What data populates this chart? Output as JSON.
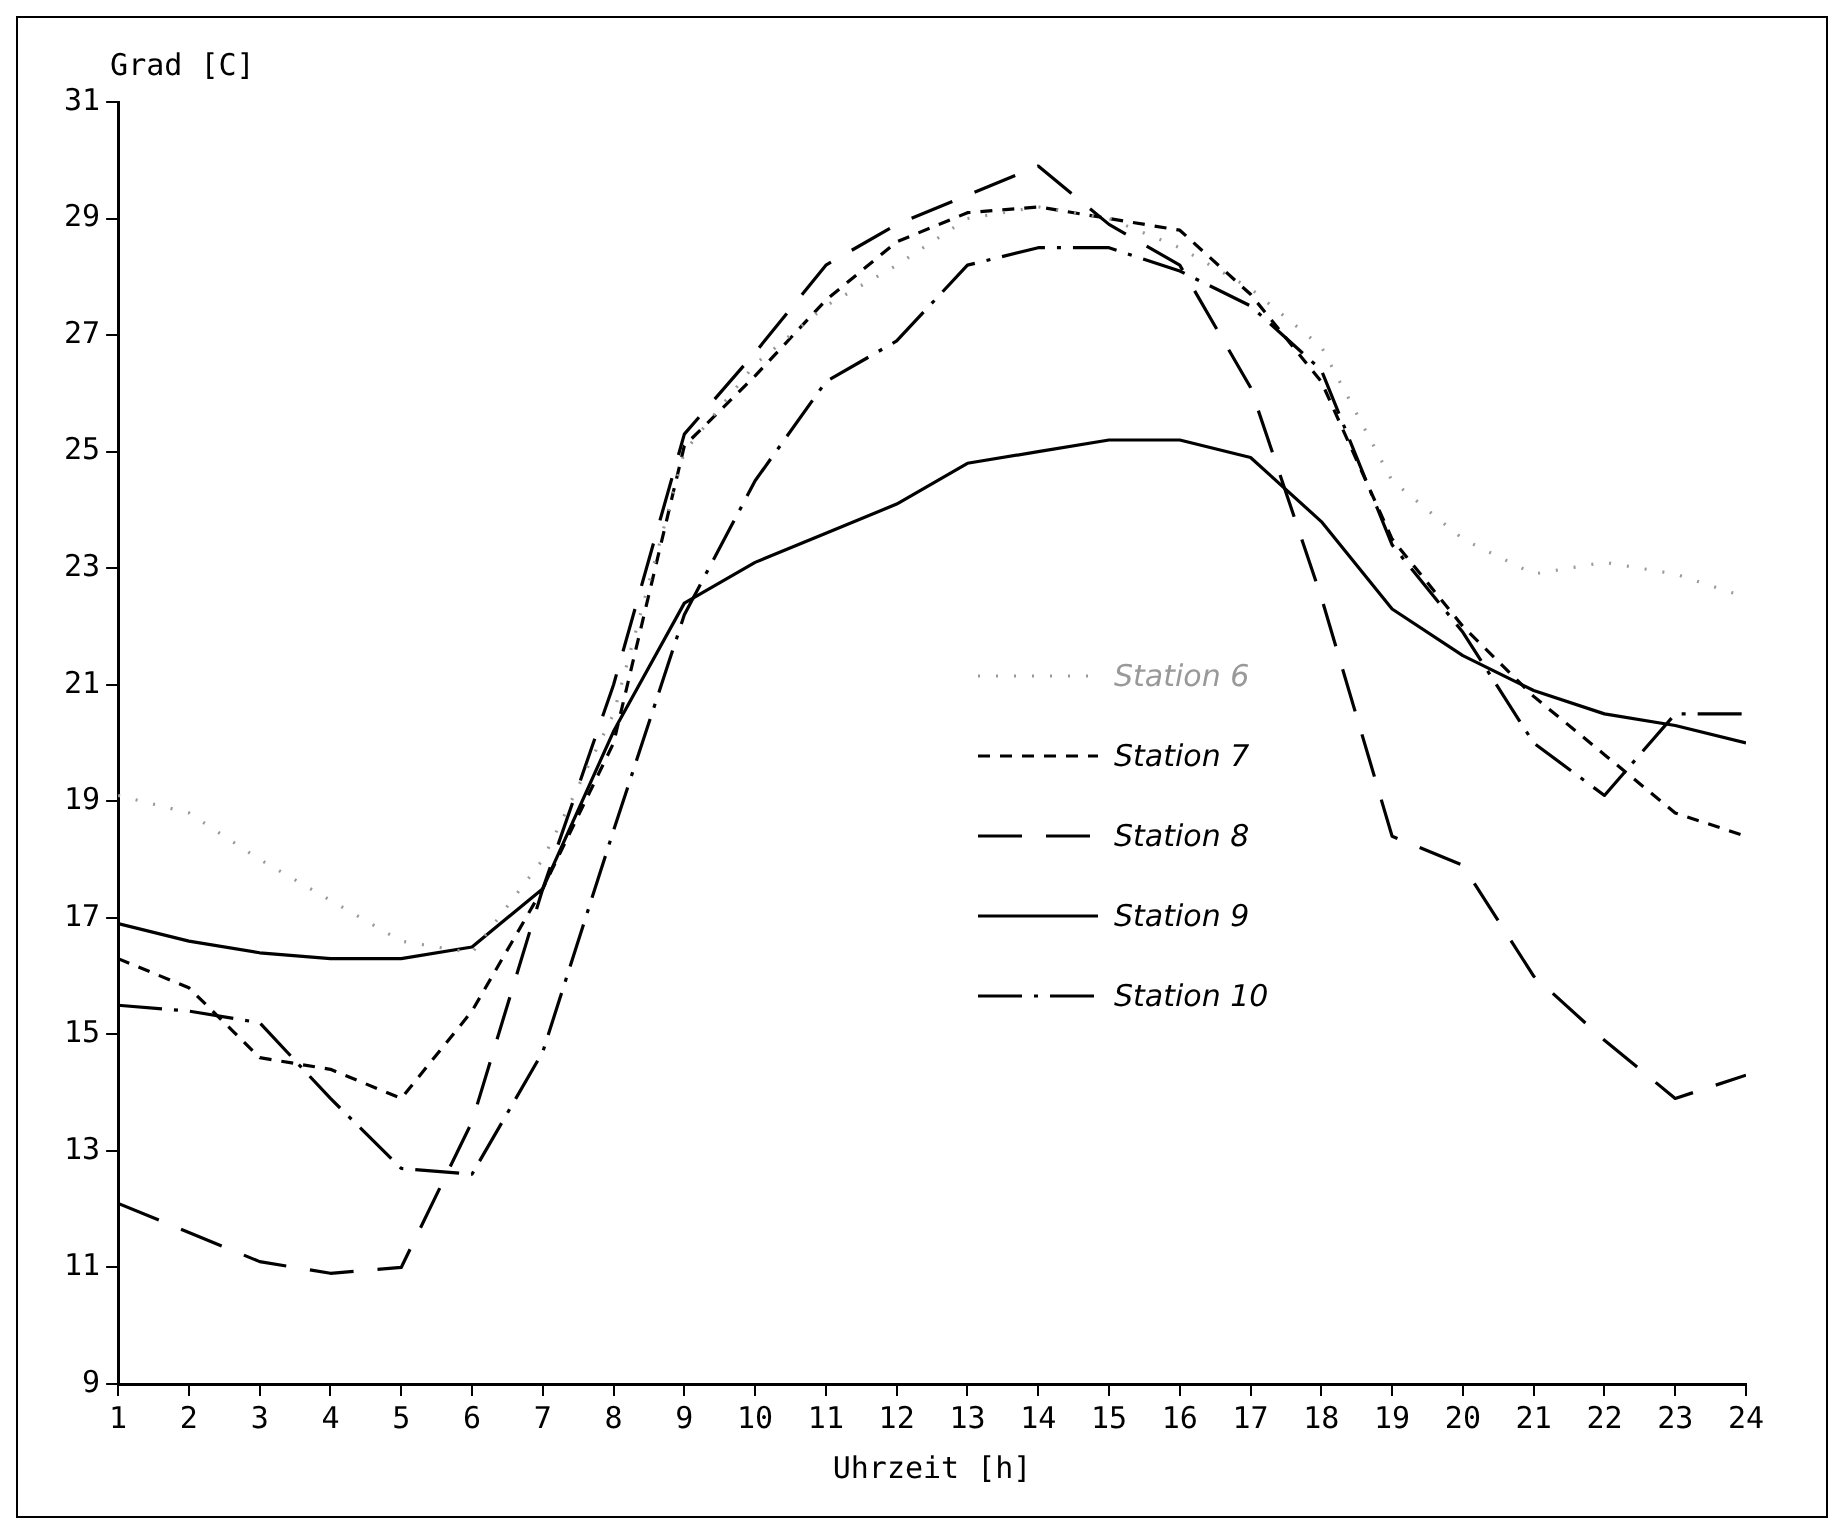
{
  "chart_data": {
    "type": "line",
    "xlabel": "Uhrzeit [h]",
    "ylabel": "Grad [C]",
    "x": [
      1,
      2,
      3,
      4,
      5,
      6,
      7,
      8,
      9,
      10,
      11,
      12,
      13,
      14,
      15,
      16,
      17,
      18,
      19,
      20,
      21,
      22,
      23,
      24
    ],
    "xlim": [
      1,
      24
    ],
    "xticks": [
      1,
      2,
      3,
      4,
      5,
      6,
      7,
      8,
      9,
      10,
      11,
      12,
      13,
      14,
      15,
      16,
      17,
      18,
      19,
      20,
      21,
      22,
      23,
      24
    ],
    "ylim": [
      9,
      31
    ],
    "yticks": [
      9,
      11,
      13,
      15,
      17,
      19,
      21,
      23,
      25,
      27,
      29,
      31
    ],
    "grid": false,
    "legend": "center",
    "marker": "none",
    "series": [
      {
        "name": "Station 6",
        "color": "#999999",
        "line_style": "dotted",
        "values": [
          19.1,
          18.8,
          18.0,
          17.3,
          16.6,
          16.4,
          18.0,
          20.5,
          25.0,
          26.5,
          27.5,
          28.2,
          29.0,
          29.2,
          29.0,
          28.5,
          27.8,
          26.8,
          24.5,
          23.5,
          22.9,
          23.1,
          22.9,
          22.5
        ]
      },
      {
        "name": "Station 7",
        "color": "#000000",
        "line_style": "dashed",
        "values": [
          16.3,
          15.8,
          14.6,
          14.4,
          13.9,
          15.4,
          17.5,
          20.0,
          25.1,
          26.3,
          27.6,
          28.6,
          29.1,
          29.2,
          29.0,
          28.8,
          27.7,
          26.2,
          23.5,
          22.0,
          20.8,
          19.8,
          18.8,
          18.4
        ]
      },
      {
        "name": "Station 8",
        "color": "#000000",
        "line_style": "longdash",
        "values": [
          12.1,
          11.6,
          11.1,
          10.9,
          11.0,
          13.5,
          17.5,
          21.0,
          25.3,
          26.7,
          28.2,
          28.9,
          29.4,
          29.9,
          28.9,
          28.2,
          26.1,
          22.5,
          18.4,
          17.9,
          16.0,
          14.9,
          13.9,
          14.3
        ]
      },
      {
        "name": "Station 9",
        "color": "#000000",
        "line_style": "solid",
        "values": [
          16.9,
          16.6,
          16.4,
          16.3,
          16.3,
          16.5,
          17.5,
          20.2,
          22.4,
          23.1,
          23.6,
          24.1,
          24.8,
          25.0,
          25.2,
          25.2,
          24.9,
          23.8,
          22.3,
          21.5,
          20.9,
          20.5,
          20.3,
          20.0
        ]
      },
      {
        "name": "Station 10",
        "color": "#000000",
        "line_style": "dashdot",
        "values": [
          15.5,
          15.4,
          15.2,
          13.9,
          12.7,
          12.6,
          14.7,
          18.5,
          22.2,
          24.5,
          26.2,
          26.9,
          28.2,
          28.5,
          28.5,
          28.1,
          27.5,
          26.4,
          23.4,
          21.9,
          20.0,
          19.1,
          20.5,
          20.5
        ]
      }
    ]
  }
}
